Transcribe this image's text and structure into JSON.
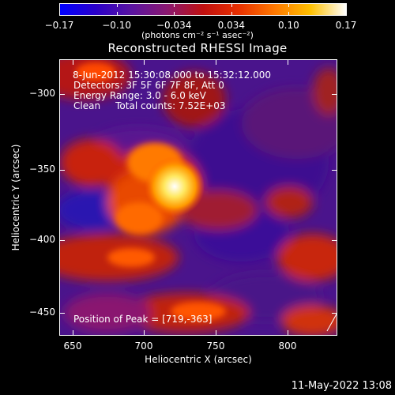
{
  "colorbar": {
    "gradient_colors": [
      "#0000ff",
      "#2a00c8",
      "#5a14a0",
      "#8a1870",
      "#c01010",
      "#e83000",
      "#ff7800",
      "#ffc000",
      "#ffffff"
    ],
    "tick_labels": [
      "−0.17",
      "−0.10",
      "−0.034",
      "0.034",
      "0.10",
      "0.17"
    ],
    "units": "(photons cm⁻² s⁻¹ asec⁻²)"
  },
  "plot": {
    "title": "Reconstructed RHESSI Image",
    "info_line1": "8-Jun-2012 15:30:08.000 to 15:32:12.000",
    "info_line2": "Detectors: 3F 5F 6F 7F 8F, Att 0",
    "info_line3": "Energy Range: 3.0 - 6.0 keV",
    "info_line4": "Clean     Total counts: 7.52E+03",
    "peak_label": "Position of Peak = [719,-363]",
    "xlabel": "Heliocentric X (arcsec)",
    "ylabel": "Heliocentric Y (arcsec)",
    "x_ticks": [
      "650",
      "700",
      "750",
      "800"
    ],
    "y_ticks": [
      "−300",
      "−350",
      "−400",
      "−450"
    ]
  },
  "footer": {
    "timestamp": "11-May-2022 13:08"
  }
}
